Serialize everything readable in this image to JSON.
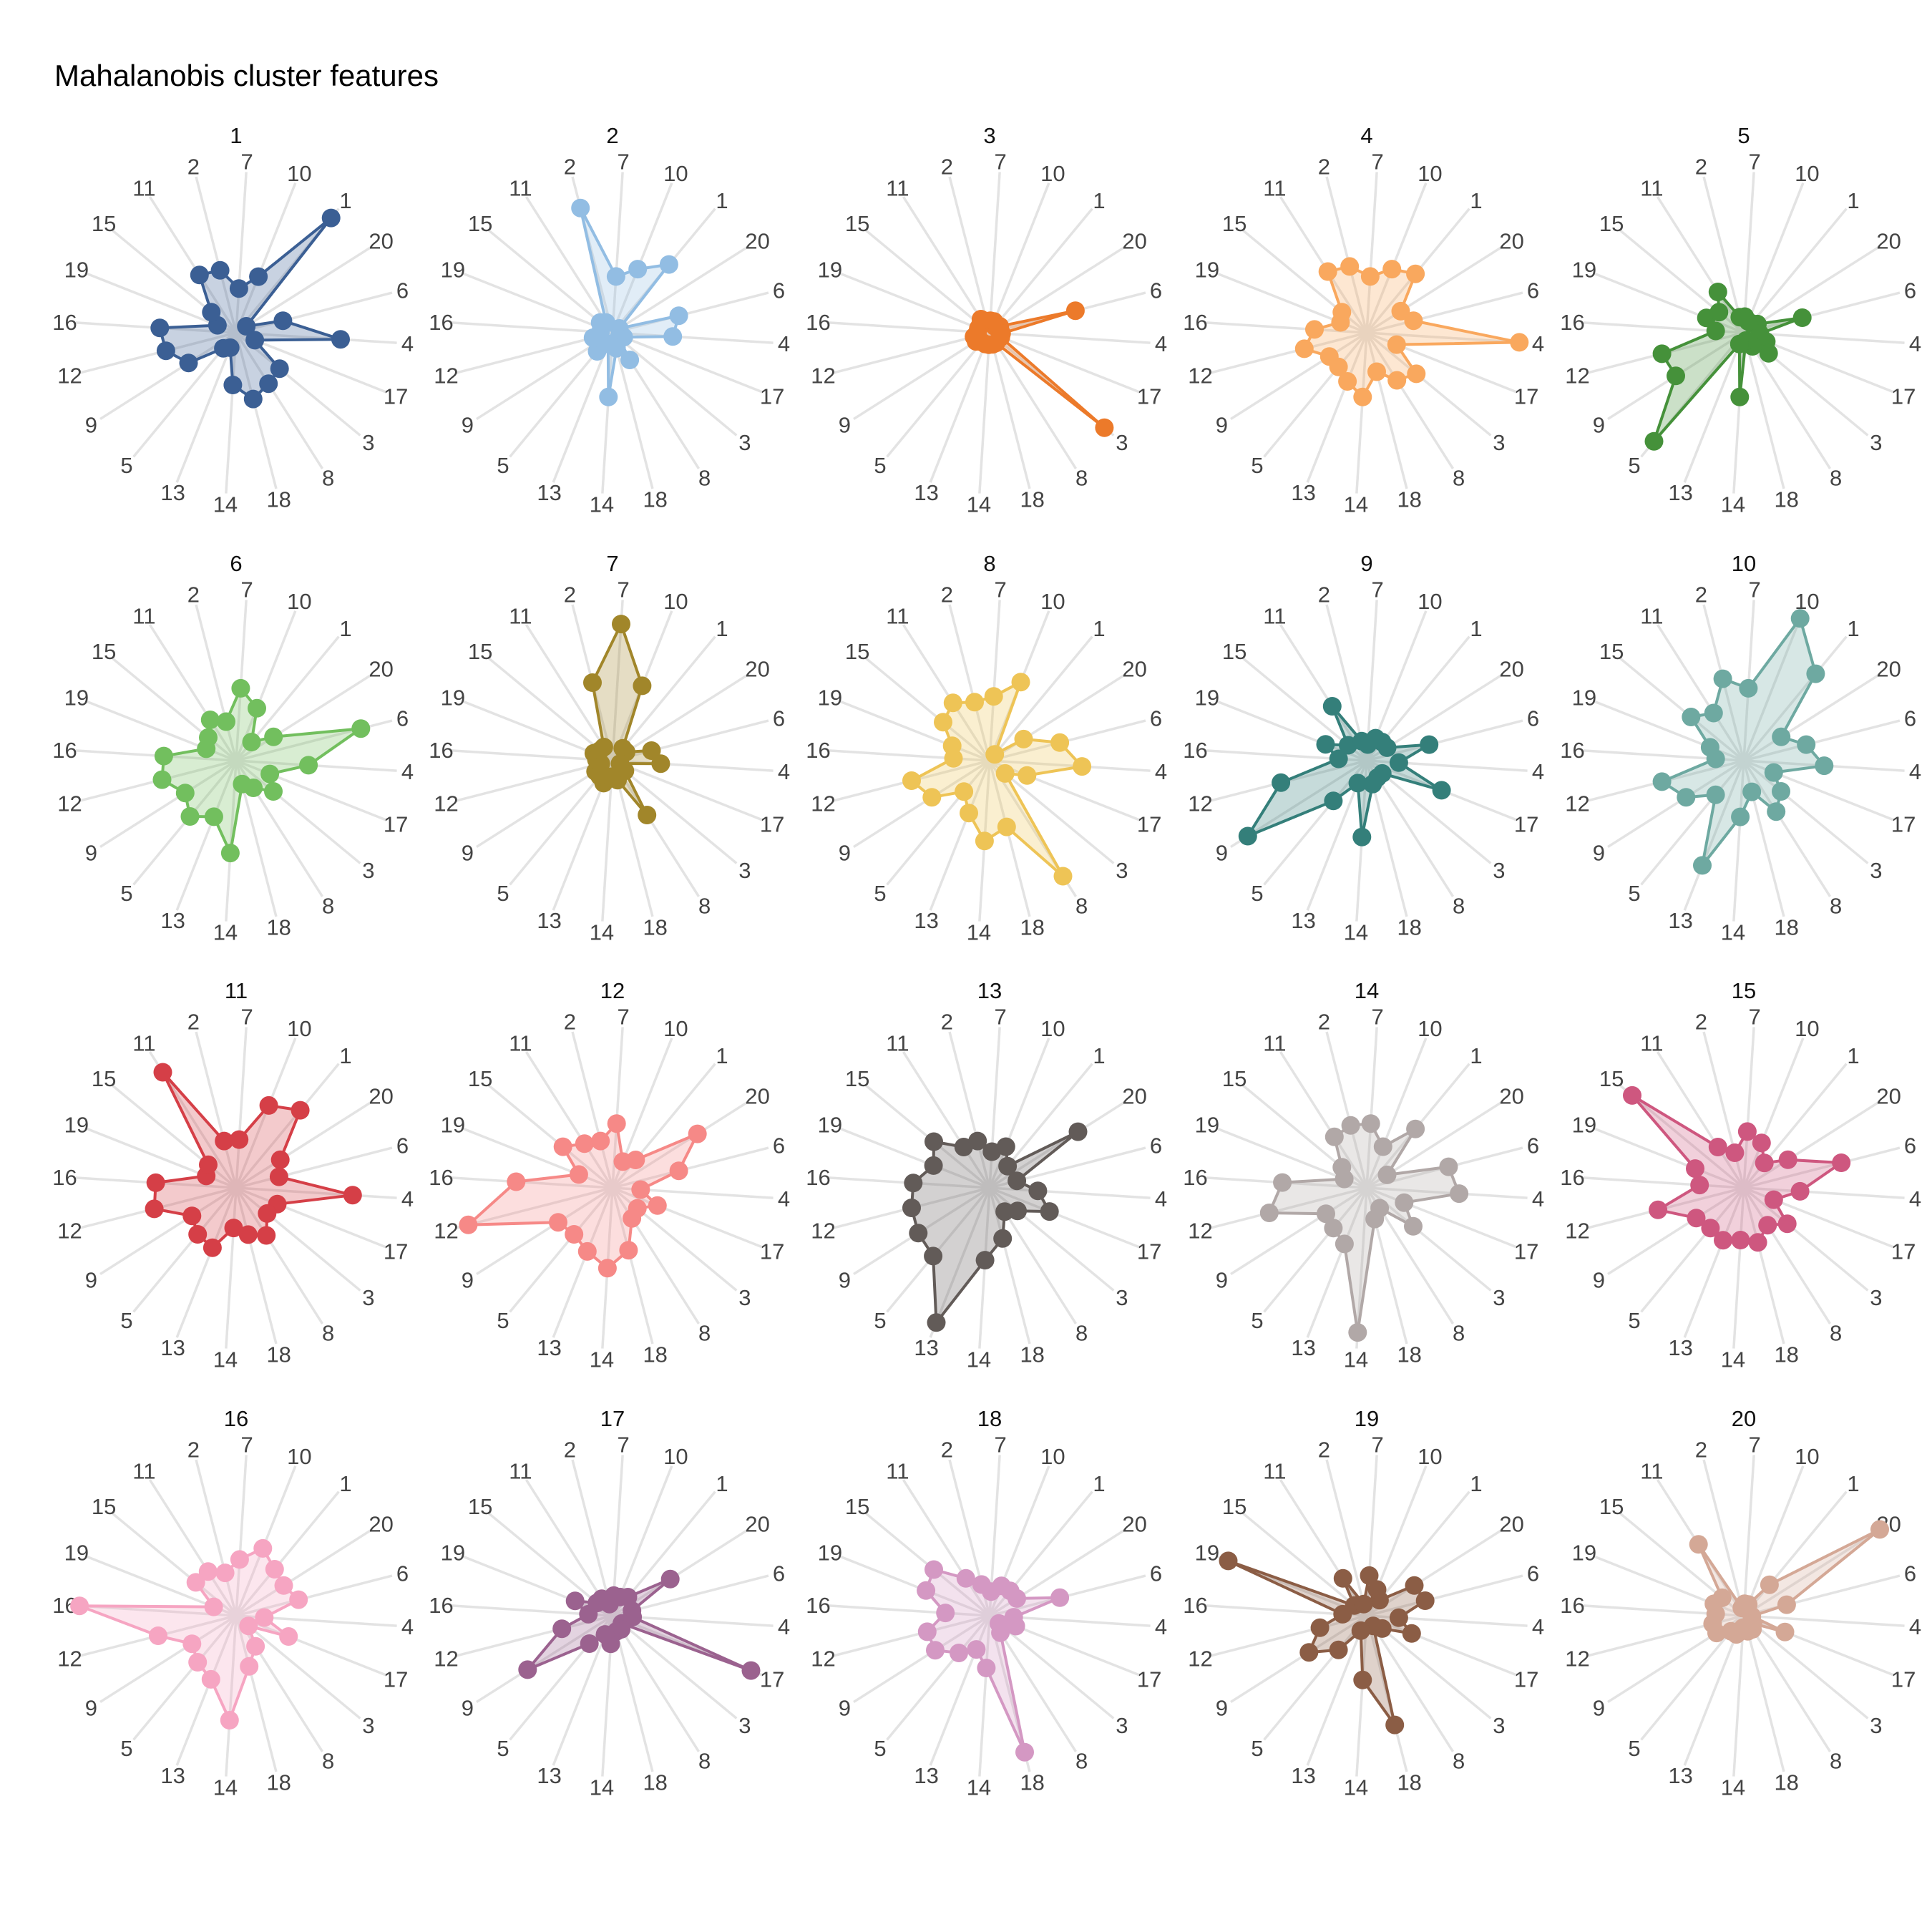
{
  "chart_data": {
    "type": "radar",
    "title": "Mahalanobis cluster features",
    "axes": [
      "1",
      "20",
      "6",
      "4",
      "17",
      "3",
      "8",
      "18",
      "14",
      "13",
      "5",
      "9",
      "12",
      "16",
      "19",
      "15",
      "11",
      "2",
      "7",
      "10"
    ],
    "panels": [
      {
        "name": "1",
        "color": "#3b5f94",
        "values": [
          3.7,
          0.3,
          1.2,
          2.6,
          0.5,
          1.4,
          1.5,
          1.7,
          1.3,
          0.4,
          0.5,
          1.4,
          1.8,
          1.9,
          0.5,
          0.8,
          1.7,
          1.6,
          1.1,
          1.5
        ]
      },
      {
        "name": "2",
        "color": "#92bde3",
        "values": [
          2.2,
          0.2,
          1.7,
          1.5,
          0.3,
          0.2,
          0.8,
          0.4,
          1.6,
          0.3,
          0.6,
          0.4,
          0.5,
          0.3,
          0.3,
          0.4,
          0.3,
          3.2,
          1.4,
          1.7
        ]
      },
      {
        "name": "3",
        "color": "#ec7a2a",
        "values": [
          0.2,
          0.3,
          2.2,
          0.3,
          0.3,
          3.7,
          0.3,
          0.3,
          0.3,
          0.3,
          0.3,
          0.4,
          0.4,
          0.3,
          0.3,
          0.3,
          0.4,
          0.3,
          0.3,
          0.3
        ]
      },
      {
        "name": "4",
        "color": "#f9a85e",
        "values": [
          1.9,
          1.0,
          1.2,
          3.8,
          0.8,
          1.6,
          1.4,
          1.0,
          1.6,
          1.3,
          1.1,
          1.1,
          1.6,
          1.3,
          0.7,
          0.8,
          1.8,
          1.7,
          1.4,
          1.7
        ]
      },
      {
        "name": "5",
        "color": "#45913a",
        "values": [
          0.3,
          0.4,
          1.5,
          0.4,
          0.6,
          0.8,
          0.4,
          0.2,
          1.6,
          0.3,
          3.5,
          2.0,
          2.1,
          0.7,
          1.0,
          0.8,
          1.2,
          0.4,
          0.4,
          0.3
        ]
      },
      {
        "name": "6",
        "color": "#72bf5e",
        "values": [
          0.6,
          1.1,
          3.2,
          1.8,
          0.9,
          1.2,
          0.8,
          0.6,
          2.3,
          1.5,
          1.8,
          1.5,
          1.9,
          1.8,
          0.8,
          0.9,
          1.2,
          1.0,
          1.8,
          1.4
        ]
      },
      {
        "name": "7",
        "color": "#a1862a",
        "values": [
          0.4,
          0.4,
          1.0,
          1.2,
          0.2,
          0.4,
          1.6,
          0.5,
          0.4,
          0.6,
          0.5,
          0.5,
          0.3,
          0.4,
          0.5,
          0.4,
          0.4,
          2.0,
          3.4,
          2.0
        ]
      },
      {
        "name": "8",
        "color": "#eec456",
        "values": [
          0.2,
          1.0,
          1.8,
          2.3,
          1.0,
          0.5,
          3.4,
          1.7,
          2.0,
          1.4,
          1.0,
          1.7,
          2.0,
          0.9,
          1.0,
          1.5,
          1.7,
          1.5,
          1.6,
          2.1
        ]
      },
      {
        "name": "9",
        "color": "#347f7a",
        "values": [
          0.6,
          0.6,
          1.6,
          0.8,
          2.0,
          0.5,
          0.5,
          0.6,
          1.9,
          0.6,
          1.3,
          3.5,
          2.2,
          0.7,
          1.1,
          0.6,
          1.6,
          0.5,
          0.4,
          0.6
        ]
      },
      {
        "name": "10",
        "color": "#6ea9a1",
        "values": [
          2.8,
          1.1,
          1.6,
          2.0,
          0.8,
          1.2,
          1.5,
          0.8,
          1.4,
          2.8,
          1.1,
          1.7,
          2.1,
          0.7,
          0.9,
          1.7,
          1.4,
          2.1,
          1.8,
          3.8
        ]
      },
      {
        "name": "11",
        "color": "#d53f47",
        "values": [
          2.5,
          1.3,
          1.1,
          2.9,
          1.1,
          1.0,
          1.4,
          1.2,
          1.0,
          1.6,
          1.5,
          1.3,
          2.1,
          2.0,
          0.8,
          0.9,
          3.4,
          1.2,
          1.2,
          2.2
        ]
      },
      {
        "name": "12",
        "color": "#f68987",
        "values": [
          0.9,
          2.5,
          1.7,
          0.7,
          1.2,
          0.8,
          0.9,
          1.6,
          2.0,
          1.7,
          1.5,
          1.6,
          3.7,
          2.4,
          0.9,
          1.6,
          1.3,
          1.2,
          1.6,
          0.7
        ]
      },
      {
        "name": "13",
        "color": "#625b58",
        "values": [
          0.7,
          2.6,
          0.7,
          1.2,
          1.6,
          0.9,
          0.7,
          1.3,
          1.8,
          3.6,
          2.2,
          2.1,
          2.0,
          1.9,
          1.5,
          1.8,
          1.2,
          1.2,
          0.9,
          1.1
        ]
      },
      {
        "name": "14",
        "color": "#b1a8a7",
        "values": [
          1.9,
          0.6,
          2.1,
          2.3,
          1.0,
          1.5,
          0.6,
          0.8,
          3.6,
          1.5,
          1.3,
          1.2,
          2.5,
          2.1,
          0.6,
          0.8,
          1.5,
          1.6,
          1.6,
          1.1
        ]
      },
      {
        "name": "15",
        "color": "#ce577f",
        "values": [
          0.8,
          1.3,
          2.5,
          1.4,
          0.8,
          1.4,
          1.1,
          1.4,
          1.3,
          1.4,
          1.3,
          1.4,
          2.2,
          1.1,
          1.3,
          3.6,
          1.2,
          0.9,
          1.4,
          1.2
        ]
      },
      {
        "name": "16",
        "color": "#f6a5c2",
        "values": [
          1.5,
          1.4,
          1.6,
          0.7,
          1.4,
          0.4,
          0.9,
          1.3,
          2.6,
          1.7,
          1.5,
          1.3,
          2.0,
          3.9,
          0.6,
          1.3,
          1.3,
          1.1,
          1.4,
          1.8
        ]
      },
      {
        "name": "17",
        "color": "#9b628f",
        "values": [
          0.6,
          1.7,
          0.5,
          0.5,
          3.7,
          0.3,
          0.4,
          0.4,
          0.7,
          0.5,
          0.9,
          2.5,
          1.3,
          0.6,
          1.0,
          0.5,
          0.5,
          0.3,
          0.5,
          0.5
        ]
      },
      {
        "name": "18",
        "color": "#d498c3",
        "values": [
          0.8,
          0.8,
          1.8,
          0.6,
          0.7,
          0.3,
          0.5,
          3.5,
          1.3,
          0.9,
          1.2,
          1.6,
          1.6,
          1.1,
          1.7,
          1.8,
          1.1,
          0.8,
          0.6,
          0.8
        ]
      },
      {
        "name": "19",
        "color": "#8b5d45",
        "values": [
          0.5,
          1.4,
          1.5,
          0.8,
          1.2,
          0.5,
          0.3,
          2.8,
          1.6,
          0.4,
          1.1,
          1.7,
          1.2,
          0.6,
          3.7,
          0.4,
          1.1,
          0.3,
          1.0,
          0.7
        ]
      },
      {
        "name": "20",
        "color": "#d4a896",
        "values": [
          1.0,
          4.0,
          1.1,
          0.2,
          1.1,
          0.3,
          0.4,
          0.4,
          0.3,
          0.5,
          0.5,
          0.8,
          0.8,
          0.7,
          0.8,
          0.7,
          2.1,
          0.2,
          0.3,
          0.3
        ]
      }
    ]
  }
}
